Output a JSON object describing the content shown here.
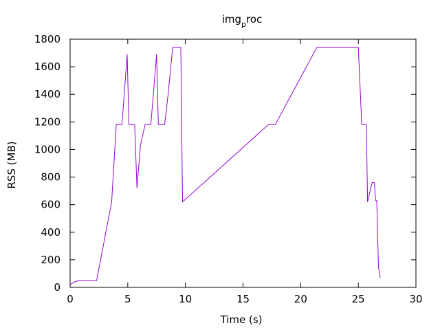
{
  "chart_data": {
    "type": "line",
    "title_main": "img",
    "title_sub": "p",
    "title_rest": "roc",
    "xlabel": "Time (s)",
    "ylabel": "RSS (MB)",
    "xlim": [
      0,
      30
    ],
    "ylim": [
      0,
      1800
    ],
    "xticks": [
      0,
      5,
      10,
      15,
      20,
      25,
      30
    ],
    "yticks": [
      0,
      200,
      400,
      600,
      800,
      1000,
      1200,
      1400,
      1600,
      1800
    ],
    "grid": false,
    "line_color": "#9400d3",
    "series": [
      {
        "x": [
          0.0,
          0.4,
          0.8,
          2.3,
          3.6,
          4.0,
          4.5,
          4.95,
          5.1,
          5.3,
          5.6,
          5.8,
          6.1,
          6.5,
          7.0,
          7.5,
          7.65,
          7.8,
          8.2,
          8.5,
          8.9,
          9.1,
          9.6,
          9.75,
          17.2,
          17.8,
          21.4,
          24.9,
          25.0,
          25.3,
          25.7,
          25.8,
          26.2,
          26.4,
          26.5,
          26.6,
          26.75,
          26.9
        ],
        "y": [
          20,
          40,
          50,
          50,
          620,
          1180,
          1180,
          1690,
          1180,
          1180,
          1180,
          720,
          1030,
          1180,
          1180,
          1690,
          1180,
          1180,
          1180,
          1400,
          1740,
          1740,
          1740,
          620,
          1180,
          1180,
          1740,
          1740,
          1740,
          1180,
          1180,
          620,
          760,
          760,
          630,
          630,
          150,
          70
        ]
      }
    ]
  }
}
